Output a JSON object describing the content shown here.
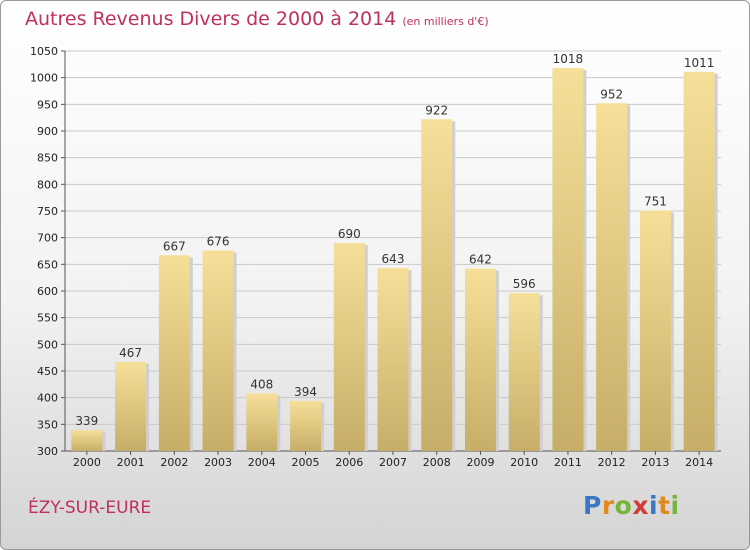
{
  "header": {
    "title": "Autres Revenus Divers de 2000 à 2014",
    "unit": "(en milliers d'€)"
  },
  "footer": {
    "city": "ÉZY-SUR-EURE",
    "logo_letters": [
      "P",
      "r",
      "o",
      "x",
      "i",
      "t",
      "i"
    ],
    "logo_colors": [
      "#3b78c4",
      "#e08a1e",
      "#78b43a",
      "#d23a3a",
      "#3b78c4",
      "#e08a1e",
      "#78b43a"
    ]
  },
  "colors": {
    "title": "#c0305c",
    "bar_top": "#f6df98",
    "bar_bottom": "#c7ae68"
  },
  "chart_data": {
    "type": "bar",
    "title": "Autres Revenus Divers de 2000 à 2014",
    "xlabel": "",
    "ylabel": "",
    "categories": [
      "2000",
      "2001",
      "2002",
      "2003",
      "2004",
      "2005",
      "2006",
      "2007",
      "2008",
      "2009",
      "2010",
      "2011",
      "2012",
      "2013",
      "2014"
    ],
    "values": [
      339,
      467,
      667,
      676,
      408,
      394,
      690,
      643,
      922,
      642,
      596,
      1018,
      952,
      751,
      1011
    ],
    "ylim": [
      300,
      1050
    ],
    "ytick_step": 50,
    "grid": true
  }
}
